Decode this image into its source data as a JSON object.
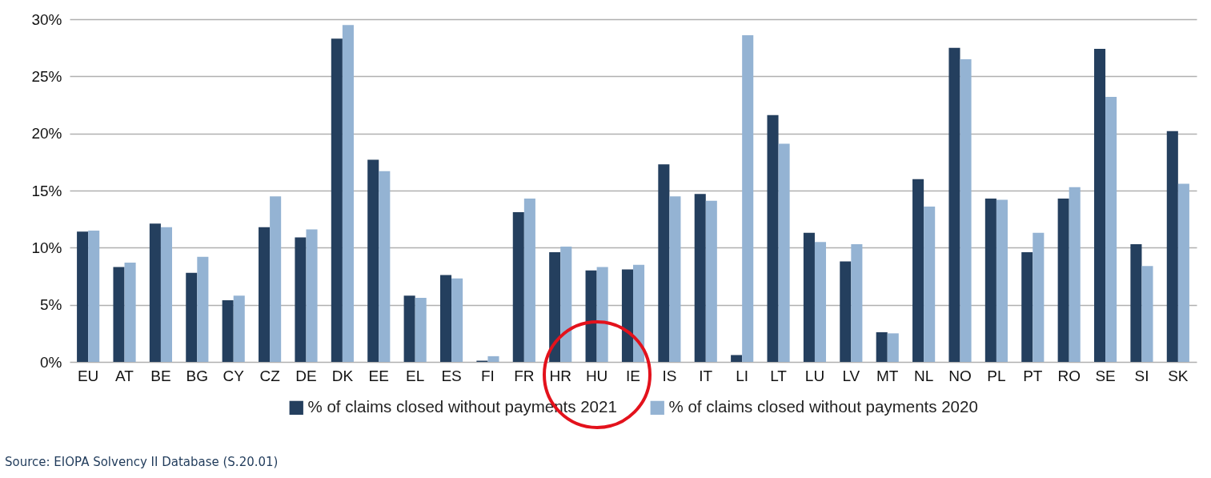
{
  "chart_data": {
    "type": "bar",
    "categories": [
      "EU",
      "AT",
      "BE",
      "BG",
      "CY",
      "CZ",
      "DE",
      "DK",
      "EE",
      "EL",
      "ES",
      "FI",
      "FR",
      "HR",
      "HU",
      "IE",
      "IS",
      "IT",
      "LI",
      "LT",
      "LU",
      "LV",
      "MT",
      "NL",
      "NO",
      "PL",
      "PT",
      "RO",
      "SE",
      "SI",
      "SK"
    ],
    "series": [
      {
        "name": "% of claims closed without payments 2021",
        "color": "#243f5e",
        "values": [
          11.4,
          8.3,
          12.1,
          7.8,
          5.4,
          11.8,
          10.9,
          28.3,
          17.7,
          5.8,
          7.6,
          0.1,
          13.1,
          9.6,
          8.0,
          8.1,
          17.3,
          14.7,
          0.6,
          21.6,
          11.3,
          8.8,
          2.6,
          16.0,
          27.5,
          14.3,
          9.6,
          14.3,
          27.4,
          10.3,
          20.2
        ]
      },
      {
        "name": "% of claims closed without payments 2020",
        "color": "#94b3d3",
        "values": [
          11.5,
          8.7,
          11.8,
          9.2,
          5.8,
          14.5,
          11.6,
          29.5,
          16.7,
          5.6,
          7.3,
          0.5,
          14.3,
          10.1,
          8.3,
          8.5,
          14.5,
          14.1,
          28.6,
          19.1,
          10.5,
          10.3,
          2.5,
          13.6,
          26.5,
          14.2,
          11.3,
          15.3,
          23.2,
          8.4,
          15.6
        ]
      }
    ],
    "ylim": [
      0,
      30
    ],
    "yticks": [
      {
        "value": 0,
        "label": "0%"
      },
      {
        "value": 5,
        "label": "5%"
      },
      {
        "value": 10,
        "label": "10%"
      },
      {
        "value": 15,
        "label": "15%"
      },
      {
        "value": 20,
        "label": "20%"
      },
      {
        "value": 25,
        "label": "25%"
      },
      {
        "value": 30,
        "label": "30%"
      }
    ],
    "grid": "y",
    "legend": "bottom",
    "annotations": [
      "Source: EIOPA Solvency II Database (S.20.01)"
    ]
  }
}
